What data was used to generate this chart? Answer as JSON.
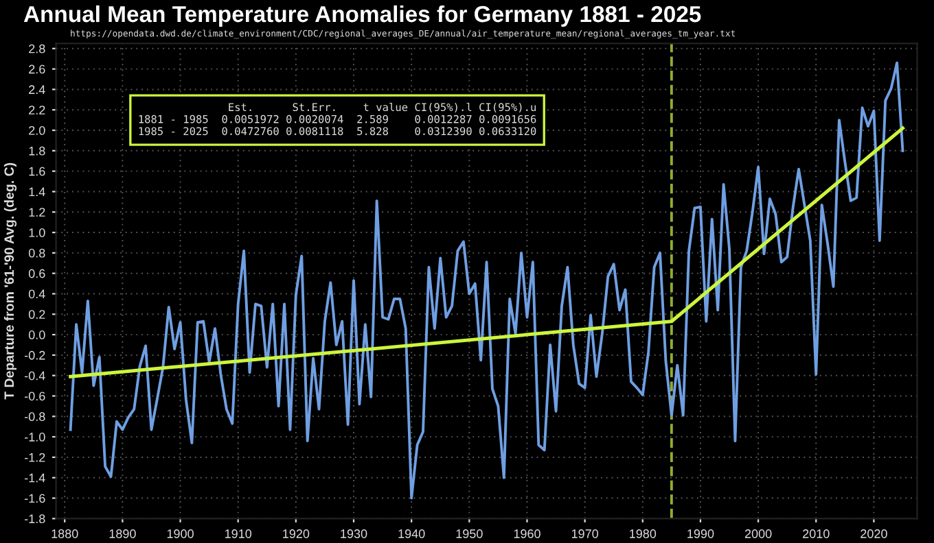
{
  "chart_data": {
    "type": "line",
    "title": "Annual Mean Temperature Anomalies for Germany 1881 - 2025",
    "subtitle": "https://opendata.dwd.de/climate_environment/CDC/regional_averages_DE/annual/air_temperature_mean/regional_averages_tm_year.txt",
    "ylabel": "T Departure from '61-'90 Avg. (deg. C)",
    "annotations": [
      "              Est.      St.Err.    t value CI(95%).l CI(95%).u\n1881 - 1985  0.0051972 0.0020074  2.589    0.0012287 0.0091656\n1985 - 2025  0.0472760 0.0081118  5.828    0.0312390 0.0633120"
    ],
    "x": [
      1881,
      1882,
      1883,
      1884,
      1885,
      1886,
      1887,
      1888,
      1889,
      1890,
      1891,
      1892,
      1893,
      1894,
      1895,
      1896,
      1897,
      1898,
      1899,
      1900,
      1901,
      1902,
      1903,
      1904,
      1905,
      1906,
      1907,
      1908,
      1909,
      1910,
      1911,
      1912,
      1913,
      1914,
      1915,
      1916,
      1917,
      1918,
      1919,
      1920,
      1921,
      1922,
      1923,
      1924,
      1925,
      1926,
      1927,
      1928,
      1929,
      1930,
      1931,
      1932,
      1933,
      1934,
      1935,
      1936,
      1937,
      1938,
      1939,
      1940,
      1941,
      1942,
      1943,
      1944,
      1945,
      1946,
      1947,
      1948,
      1949,
      1950,
      1951,
      1952,
      1953,
      1954,
      1955,
      1956,
      1957,
      1958,
      1959,
      1960,
      1961,
      1962,
      1963,
      1964,
      1965,
      1966,
      1967,
      1968,
      1969,
      1970,
      1971,
      1972,
      1973,
      1974,
      1975,
      1976,
      1977,
      1978,
      1979,
      1980,
      1981,
      1982,
      1983,
      1984,
      1985,
      1986,
      1987,
      1988,
      1989,
      1990,
      1991,
      1992,
      1993,
      1994,
      1995,
      1996,
      1997,
      1998,
      1999,
      2000,
      2001,
      2002,
      2003,
      2004,
      2005,
      2006,
      2007,
      2008,
      2009,
      2010,
      2011,
      2012,
      2013,
      2014,
      2015,
      2016,
      2017,
      2018,
      2019,
      2020,
      2021,
      2022,
      2023,
      2024,
      2025
    ],
    "series": [
      {
        "color": "#6f9fe2",
        "values": [
          -0.93,
          0.1,
          -0.37,
          0.33,
          -0.5,
          -0.22,
          -1.29,
          -1.39,
          -0.85,
          -0.93,
          -0.81,
          -0.73,
          -0.31,
          -0.11,
          -0.93,
          -0.63,
          -0.32,
          0.27,
          -0.14,
          0.12,
          -0.64,
          -1.06,
          0.12,
          0.13,
          -0.27,
          0.06,
          -0.39,
          -0.73,
          -0.87,
          0.3,
          0.82,
          -0.37,
          0.3,
          0.28,
          -0.32,
          0.3,
          -0.7,
          0.3,
          -0.93,
          0.39,
          0.77,
          -1.04,
          -0.23,
          -0.73,
          0.13,
          0.51,
          -0.1,
          0.13,
          -0.88,
          0.53,
          -0.68,
          0.1,
          -0.61,
          1.31,
          0.17,
          0.15,
          0.35,
          0.35,
          0.06,
          -1.6,
          -1.08,
          -0.95,
          0.66,
          0.06,
          0.75,
          0.17,
          0.28,
          0.82,
          0.91,
          0.4,
          0.5,
          -0.25,
          0.71,
          -0.53,
          -0.7,
          -1.4,
          0.35,
          0.01,
          0.8,
          0.17,
          0.71,
          -1.08,
          -1.13,
          -0.1,
          -0.75,
          0.28,
          0.66,
          -0.1,
          -0.48,
          -0.52,
          0.19,
          -0.41,
          0.01,
          0.57,
          0.69,
          0.24,
          0.44,
          -0.46,
          -0.52,
          -0.59,
          -0.17,
          0.66,
          0.8,
          -0.26,
          -0.79,
          -0.3,
          -0.79,
          0.82,
          1.24,
          1.25,
          0.13,
          1.13,
          0.24,
          1.47,
          0.84,
          -1.04,
          0.66,
          0.82,
          1.2,
          1.64,
          0.79,
          1.33,
          1.18,
          0.71,
          0.76,
          1.24,
          1.62,
          1.27,
          0.92,
          -0.39,
          1.27,
          0.89,
          0.47,
          2.1,
          1.69,
          1.31,
          1.34,
          2.22,
          2.04,
          2.19,
          0.92,
          2.29,
          2.41,
          2.66,
          1.8
        ]
      },
      {
        "color": "#ccf53c",
        "x": [
          1881,
          1985,
          2025
        ],
        "values": [
          -0.41,
          0.13,
          2.02
        ]
      }
    ],
    "ref_lines": [
      {
        "axis": "x",
        "value": 1985,
        "label": null,
        "color": "#8fae2e",
        "line_style": "dashed"
      }
    ],
    "xlim": [
      1878.5,
      2027.5
    ],
    "xticks": [
      1880,
      1890,
      1900,
      1910,
      1920,
      1930,
      1940,
      1950,
      1960,
      1970,
      1980,
      1990,
      2000,
      2010,
      2020
    ],
    "ylim": [
      -1.8,
      2.85
    ],
    "yticks": [
      {
        "value": 2.8,
        "label": "2.8"
      },
      {
        "value": 2.6,
        "label": "2.6"
      },
      {
        "value": 2.4,
        "label": "2.4"
      },
      {
        "value": 2.2,
        "label": "2.2"
      },
      {
        "value": 2.0,
        "label": "2.0"
      },
      {
        "value": 1.8,
        "label": "1.8"
      },
      {
        "value": 1.6,
        "label": "1.6"
      },
      {
        "value": 1.4,
        "label": "1.4"
      },
      {
        "value": 1.2,
        "label": "1.2"
      },
      {
        "value": 1.0,
        "label": "1.0"
      },
      {
        "value": 0.8,
        "label": "0.8"
      },
      {
        "value": 0.6,
        "label": "0.6"
      },
      {
        "value": 0.4,
        "label": "0.4"
      },
      {
        "value": 0.2,
        "label": "0.2"
      },
      {
        "value": 0.0,
        "label": "0.0"
      },
      {
        "value": -0.2,
        "label": "-0.2"
      },
      {
        "value": -0.4,
        "label": "-0.4"
      },
      {
        "value": -0.6,
        "label": "-0.6"
      },
      {
        "value": -0.8,
        "label": "-0.8"
      },
      {
        "value": -1.0,
        "label": "-1.0"
      },
      {
        "value": -1.2,
        "label": "-1.2"
      },
      {
        "value": -1.4,
        "label": "-1.4"
      },
      {
        "value": -1.6,
        "label": "-1.6"
      },
      {
        "value": -1.8,
        "label": "-1.8"
      }
    ],
    "grid": true,
    "legend": false,
    "marker": "none",
    "line_style": "solid"
  }
}
